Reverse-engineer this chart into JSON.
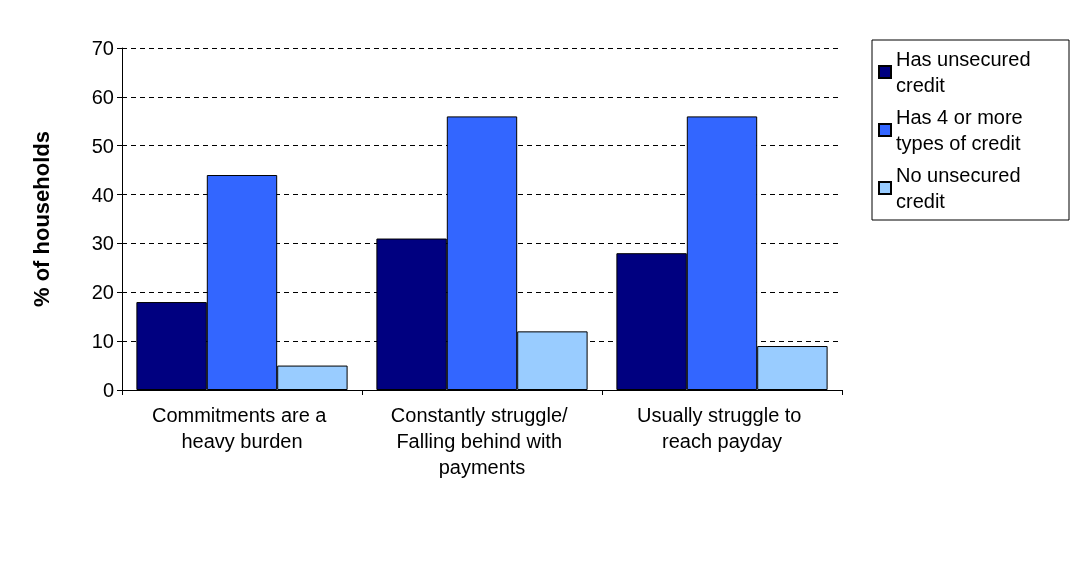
{
  "chart_data": {
    "type": "bar",
    "ylabel": "% of households",
    "categories": [
      "Commitments are a heavy burden",
      "Constantly struggle/ Falling behind with payments",
      "Usually struggle to reach payday"
    ],
    "series": [
      {
        "name": "Has unsecured credit",
        "color": "#000080",
        "values": [
          18,
          31,
          28
        ]
      },
      {
        "name": "Has 4 or more types of credit",
        "color": "#3366ff",
        "values": [
          44,
          56,
          56
        ]
      },
      {
        "name": "No unsecured credit",
        "color": "#99ccff",
        "values": [
          5,
          12,
          9
        ]
      }
    ],
    "ylim": [
      0,
      70
    ],
    "yticks": [
      0,
      10,
      20,
      30,
      40,
      50,
      60,
      70
    ],
    "grid": "y",
    "legend": "right"
  }
}
